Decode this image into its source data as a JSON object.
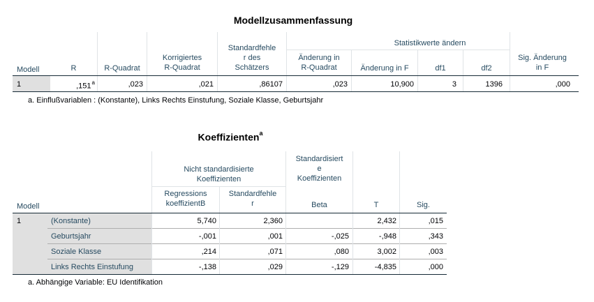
{
  "t1": {
    "title": "Modellzusammenfassung",
    "headers": {
      "modell": "Modell",
      "r": "R",
      "rq": "R-Quadrat",
      "krq_1": "Korrigiertes",
      "krq_2": "R-Quadrat",
      "sf_1": "Standardfehle",
      "sf_2": "r des",
      "sf_3": "Schätzers",
      "group": "Statistikwerte ändern",
      "arq_1": "Änderung in",
      "arq_2": "R-Quadrat",
      "af": "Änderung in F",
      "df1": "df1",
      "df2": "df2",
      "sig_1": "Sig. Änderung",
      "sig_2": "in F"
    },
    "row": {
      "modell": "1",
      "r": ",151",
      "r_footnote": "a",
      "rq": ",023",
      "krq": ",021",
      "sf": ",86107",
      "arq": ",023",
      "af": "10,900",
      "df1": "3",
      "df2": "1396",
      "sig": ",000"
    },
    "note": "a. Einflußvariablen : (Konstante), Links Rechts Einstufung, Soziale Klasse, Geburtsjahr"
  },
  "t2": {
    "title": "Koeffizienten",
    "title_footnote": "a",
    "headers": {
      "modell": "Modell",
      "nsk_1": "Nicht standardisierte",
      "nsk_2": "Koeffizienten",
      "reg_1": "Regressions",
      "reg_2": "koeffizientB",
      "sf_1": "Standardfehle",
      "sf_2": "r",
      "sk_1": "Standardisiert",
      "sk_2": "e",
      "sk_3": "Koeffizienten",
      "beta": "Beta",
      "t": "T",
      "sig": "Sig."
    },
    "modell": "1",
    "rows": [
      {
        "label": "(Konstante)",
        "b": "5,740",
        "se": "2,360",
        "beta": "",
        "t": "2,432",
        "sig": ",015"
      },
      {
        "label": "Geburtsjahr",
        "b": "-,001",
        "se": ",001",
        "beta": "-,025",
        "t": "-,948",
        "sig": ",343"
      },
      {
        "label": "Soziale Klasse",
        "b": ",214",
        "se": ",071",
        "beta": ",080",
        "t": "3,002",
        "sig": ",003"
      },
      {
        "label": "Links Rechts Einstufung",
        "b": "-,138",
        "se": ",029",
        "beta": "-,129",
        "t": "-4,835",
        "sig": ",000"
      }
    ],
    "note": "a. Abhängige Variable: EU Identifikation"
  }
}
